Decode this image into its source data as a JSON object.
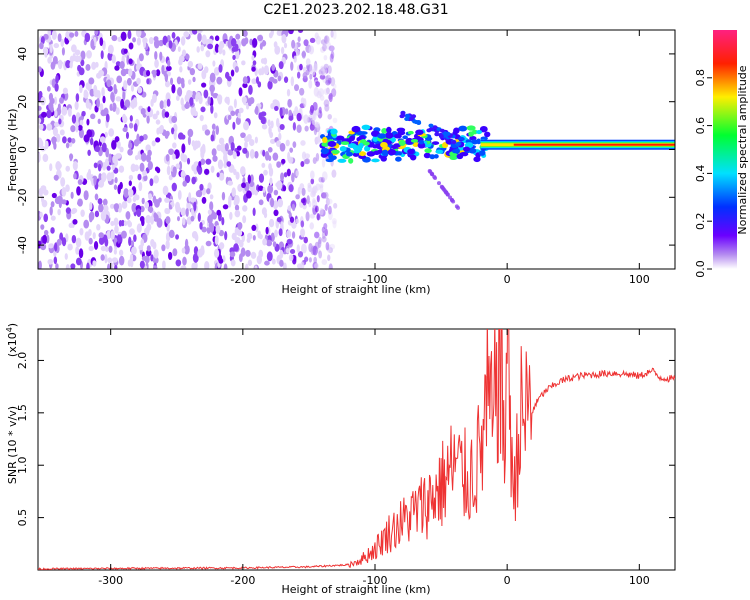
{
  "title": "C2E1.2023.202.18.48.G31",
  "colors": {
    "snr_line": "#ee3333",
    "scatter": "#7a1fe8"
  },
  "chart_data": [
    {
      "type": "heatmap",
      "title": "C2E1.2023.202.18.48.G31",
      "xlabel": "Height of straight line (km)",
      "ylabel": "Frequency (Hz)",
      "xlim": [
        -355,
        127
      ],
      "ylim": [
        -50,
        50
      ],
      "x_ticks": [
        -300,
        -200,
        -100,
        0,
        100
      ],
      "x_tick_labels": [
        "-300",
        "-200",
        "-100",
        "0",
        "100"
      ],
      "y_ticks": [
        -40,
        -20,
        0,
        20,
        40
      ],
      "y_tick_labels": [
        "-40",
        "-20",
        "0",
        "20",
        "40"
      ],
      "colorbar": {
        "label": "Normalized spectral amplitude",
        "range": [
          0,
          1
        ],
        "ticks": [
          0.0,
          0.2,
          0.4,
          0.6,
          0.8
        ],
        "tick_labels": [
          "0.0",
          "0.2",
          "0.4",
          "0.6",
          "0.8"
        ],
        "colormap": "rainbow (white-purple-blue-cyan-green-yellow-red-pink)"
      },
      "grid": false,
      "features": [
        {
          "region": "scattered noise",
          "x_range": [
            -355,
            -130
          ],
          "y_range": [
            -50,
            50
          ],
          "amplitude": 0.1
        },
        {
          "region": "signal band",
          "x_range": [
            -140,
            127
          ],
          "center_frequency": 2,
          "amplitude_peak": 0.9
        }
      ]
    },
    {
      "type": "line",
      "xlabel": "Height of straight line (km)",
      "ylabel": "SNR (10 * v/v)",
      "y_multiplier_label": "(x10",
      "y_multiplier_exp": "4",
      "y_multiplier_close": ")",
      "xlim": [
        -355,
        127
      ],
      "ylim": [
        0,
        2.3
      ],
      "x_ticks": [
        -300,
        -200,
        -100,
        0,
        100
      ],
      "x_tick_labels": [
        "-300",
        "-200",
        "-100",
        "0",
        "100"
      ],
      "y_ticks": [
        0.5,
        1.0,
        1.5,
        2.0
      ],
      "y_tick_labels": [
        "0.5",
        "1.0",
        "1.5",
        "2.0"
      ],
      "grid": false,
      "series": [
        {
          "color": "#ee3333",
          "x": [
            -355,
            -300,
            -200,
            -150,
            -120,
            -110,
            -100,
            -90,
            -80,
            -70,
            -60,
            -50,
            -40,
            -30,
            -20,
            -15,
            -10,
            -8,
            -5,
            -2,
            0,
            3,
            5,
            8,
            10,
            15,
            20,
            25,
            30,
            40,
            50,
            60,
            70,
            80,
            90,
            100,
            105,
            110,
            115,
            120,
            127
          ],
          "y": [
            0.01,
            0.015,
            0.02,
            0.03,
            0.05,
            0.1,
            0.2,
            0.35,
            0.45,
            0.55,
            0.65,
            0.8,
            1.0,
            0.85,
            1.1,
            1.6,
            1.3,
            2.1,
            1.9,
            1.2,
            2.3,
            1.4,
            0.6,
            1.3,
            1.4,
            1.5,
            1.55,
            1.65,
            1.72,
            1.8,
            1.84,
            1.86,
            1.87,
            1.88,
            1.87,
            1.85,
            1.88,
            1.9,
            1.84,
            1.83,
            1.82
          ]
        }
      ]
    }
  ]
}
